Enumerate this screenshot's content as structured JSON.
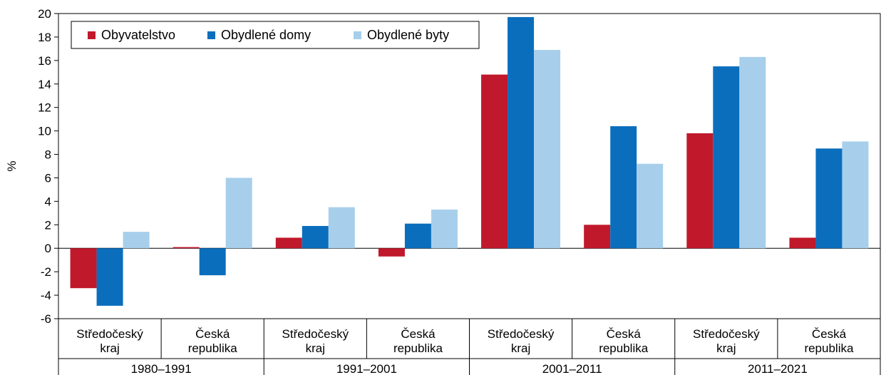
{
  "chart_data": {
    "type": "bar",
    "ylabel": "%",
    "ylim": [
      -6,
      20
    ],
    "yticks": [
      -6,
      -4,
      -2,
      0,
      2,
      4,
      6,
      8,
      10,
      12,
      14,
      16,
      18,
      20
    ],
    "legend_position": "top-left",
    "grid": false,
    "groups": [
      {
        "period": "1980–1991",
        "regions": [
          "Středočeský kraj",
          "Česká republika"
        ]
      },
      {
        "period": "1991–2001",
        "regions": [
          "Středočeský kraj",
          "Česká republika"
        ]
      },
      {
        "period": "2001–2011",
        "regions": [
          "Středočeský kraj",
          "Česká republika"
        ]
      },
      {
        "period": "2011–2021",
        "regions": [
          "Středočeský kraj",
          "Česká republika"
        ]
      }
    ],
    "categories": [
      "Středočeský kraj 1980–1991",
      "Česká republika 1980–1991",
      "Středočeský kraj 1991–2001",
      "Česká republika 1991–2001",
      "Středočeský kraj 2001–2011",
      "Česká republika 2001–2011",
      "Středočeský kraj 2011–2021",
      "Česká republika 2011–2021"
    ],
    "series": [
      {
        "name": "Obyvatelstvo",
        "color": "#c0192b",
        "values": [
          -3.4,
          0.1,
          0.9,
          -0.7,
          14.8,
          2.0,
          9.8,
          0.9
        ]
      },
      {
        "name": "Obydlené domy",
        "color": "#0a6ebd",
        "values": [
          -4.9,
          -2.3,
          1.9,
          2.1,
          19.7,
          10.4,
          15.5,
          8.5
        ]
      },
      {
        "name": "Obydlené byty",
        "color": "#a7cfeb",
        "values": [
          1.4,
          6.0,
          3.5,
          3.3,
          16.9,
          7.2,
          16.3,
          9.1
        ]
      }
    ]
  }
}
